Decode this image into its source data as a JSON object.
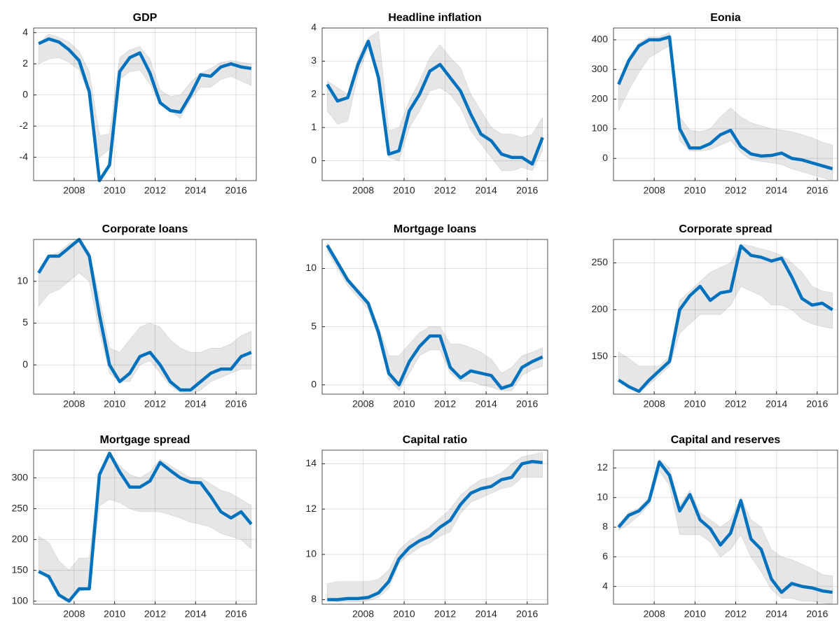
{
  "chart_data": [
    {
      "type": "line",
      "title": "GDP",
      "x": [
        2006.25,
        2006.75,
        2007.25,
        2007.75,
        2008.25,
        2008.75,
        2009.25,
        2009.75,
        2010.25,
        2010.75,
        2011.25,
        2011.75,
        2012.25,
        2012.75,
        2013.25,
        2013.75,
        2014.25,
        2014.75,
        2015.25,
        2015.75,
        2016.25,
        2016.75
      ],
      "series": [
        {
          "color": "#0072bd",
          "values": [
            3.3,
            3.6,
            3.4,
            2.9,
            2.2,
            0.2,
            -5.5,
            -4.5,
            1.5,
            2.4,
            2.7,
            1.4,
            -0.5,
            -1.0,
            -1.1,
            0.0,
            1.3,
            1.2,
            1.8,
            2.0,
            1.8,
            1.7
          ]
        }
      ],
      "band": {
        "color": "#e6e6e6",
        "lower": [
          2.0,
          2.3,
          2.4,
          2.1,
          1.6,
          0.0,
          -4.0,
          -3.5,
          1.0,
          1.5,
          1.6,
          0.7,
          -0.6,
          -1.0,
          -1.5,
          -0.3,
          0.5,
          0.5,
          1.0,
          1.2,
          0.9,
          0.6
        ],
        "upper": [
          3.3,
          3.9,
          3.7,
          3.4,
          2.8,
          1.5,
          -2.6,
          -2.5,
          2.4,
          2.9,
          3.1,
          2.3,
          0.3,
          -0.1,
          0.0,
          0.8,
          1.4,
          1.7,
          2.1,
          2.2,
          2.1,
          2.0
        ]
      },
      "xlim": [
        2006,
        2017
      ],
      "xticks": [
        2008,
        2010,
        2012,
        2014,
        2016
      ],
      "ylim": [
        -5.5,
        4.3
      ],
      "yticks": [
        -4,
        -2,
        0,
        2,
        4
      ],
      "grid": true
    },
    {
      "type": "line",
      "title": "Headline inflation",
      "x": [
        2006.25,
        2006.75,
        2007.25,
        2007.75,
        2008.25,
        2008.75,
        2009.25,
        2009.75,
        2010.25,
        2010.75,
        2011.25,
        2011.75,
        2012.25,
        2012.75,
        2013.25,
        2013.75,
        2014.25,
        2014.75,
        2015.25,
        2015.75,
        2016.25,
        2016.75
      ],
      "series": [
        {
          "color": "#0072bd",
          "values": [
            2.3,
            1.8,
            1.9,
            2.9,
            3.6,
            2.5,
            0.2,
            0.3,
            1.5,
            2.0,
            2.7,
            2.9,
            2.5,
            2.1,
            1.4,
            0.8,
            0.6,
            0.2,
            0.1,
            0.1,
            -0.1,
            0.7
          ]
        }
      ],
      "band": {
        "color": "#e6e6e6",
        "lower": [
          1.5,
          1.1,
          1.2,
          2.6,
          3.4,
          2.4,
          0.1,
          0.0,
          1.0,
          1.5,
          2.1,
          2.2,
          2.0,
          1.6,
          0.9,
          0.5,
          0.1,
          -0.3,
          -0.3,
          -0.2,
          -0.3,
          0.3
        ],
        "upper": [
          2.4,
          2.2,
          2.0,
          3.1,
          3.7,
          3.9,
          0.9,
          1.0,
          1.8,
          2.4,
          3.1,
          3.5,
          3.1,
          2.8,
          2.0,
          1.5,
          1.0,
          0.8,
          0.8,
          0.7,
          0.8,
          1.3
        ]
      },
      "xlim": [
        2006,
        2017
      ],
      "xticks": [
        2008,
        2010,
        2012,
        2014,
        2016
      ],
      "ylim": [
        -0.6,
        4.0
      ],
      "yticks": [
        0,
        1,
        2,
        3,
        4
      ],
      "grid": true
    },
    {
      "type": "line",
      "title": "Eonia",
      "x": [
        2006.25,
        2006.75,
        2007.25,
        2007.75,
        2008.25,
        2008.75,
        2009.25,
        2009.75,
        2010.25,
        2010.75,
        2011.25,
        2011.75,
        2012.25,
        2012.75,
        2013.25,
        2013.75,
        2014.25,
        2014.75,
        2015.25,
        2015.75,
        2016.25,
        2016.75
      ],
      "series": [
        {
          "color": "#0072bd",
          "values": [
            250,
            330,
            380,
            400,
            400,
            410,
            100,
            35,
            35,
            50,
            80,
            95,
            40,
            15,
            8,
            10,
            18,
            0,
            -5,
            -15,
            -25,
            -35
          ]
        }
      ],
      "band": {
        "color": "#e6e6e6",
        "lower": [
          160,
          230,
          290,
          340,
          360,
          380,
          60,
          25,
          25,
          30,
          45,
          60,
          20,
          -5,
          -10,
          -15,
          -20,
          -35,
          -45,
          -55,
          -65,
          -75
        ],
        "upper": [
          260,
          340,
          390,
          410,
          410,
          425,
          140,
          95,
          90,
          100,
          140,
          170,
          140,
          120,
          110,
          100,
          95,
          90,
          80,
          70,
          55,
          45
        ]
      },
      "xlim": [
        2006,
        2017
      ],
      "xticks": [
        2008,
        2010,
        2012,
        2014,
        2016
      ],
      "ylim": [
        -75,
        440
      ],
      "yticks": [
        0,
        100,
        200,
        300,
        400
      ],
      "grid": true
    },
    {
      "type": "line",
      "title": "Corporate loans",
      "x": [
        2006.25,
        2006.75,
        2007.25,
        2007.75,
        2008.25,
        2008.75,
        2009.25,
        2009.75,
        2010.25,
        2010.75,
        2011.25,
        2011.75,
        2012.25,
        2012.75,
        2013.25,
        2013.75,
        2014.25,
        2014.75,
        2015.25,
        2015.75,
        2016.25,
        2016.75
      ],
      "series": [
        {
          "color": "#0072bd",
          "values": [
            11,
            13,
            13,
            14,
            15,
            13,
            6,
            0,
            -2,
            -1,
            1,
            1.5,
            0,
            -2,
            -3,
            -3,
            -2,
            -1,
            -0.5,
            -0.5,
            1,
            1.5
          ]
        }
      ],
      "band": {
        "color": "#e6e6e6",
        "lower": [
          7,
          8.5,
          9,
          10,
          11,
          10,
          4,
          -1,
          -2,
          -2,
          0,
          0.5,
          -1,
          -2.5,
          -3.3,
          -3.5,
          -3,
          -2,
          -1.5,
          -1,
          -0.5,
          -0.5
        ],
        "upper": [
          11,
          13,
          13.5,
          14.5,
          15,
          13.5,
          8,
          2,
          1.5,
          3,
          4.5,
          5,
          4.5,
          3,
          2,
          1.5,
          1.5,
          2,
          2,
          2.5,
          3.5,
          4
        ]
      },
      "xlim": [
        2006,
        2017
      ],
      "xticks": [
        2008,
        2010,
        2012,
        2014,
        2016
      ],
      "ylim": [
        -3.5,
        15
      ],
      "yticks": [
        0,
        5,
        10
      ],
      "grid": true
    },
    {
      "type": "line",
      "title": "Mortgage loans",
      "x": [
        2006.25,
        2006.75,
        2007.25,
        2007.75,
        2008.25,
        2008.75,
        2009.25,
        2009.75,
        2010.25,
        2010.75,
        2011.25,
        2011.75,
        2012.25,
        2012.75,
        2013.25,
        2013.75,
        2014.25,
        2014.75,
        2015.25,
        2015.75,
        2016.25,
        2016.75
      ],
      "series": [
        {
          "color": "#0072bd",
          "values": [
            12,
            10.5,
            9,
            8,
            7,
            4.5,
            1,
            0,
            2,
            3.3,
            4.2,
            4.2,
            1.5,
            0.6,
            1.2,
            1,
            0.8,
            -0.3,
            0,
            1.5,
            2,
            2.4
          ]
        }
      ],
      "band": {
        "color": "#e6e6e6",
        "lower": [
          11.5,
          10,
          8.5,
          7.5,
          6.5,
          4,
          0.5,
          -0.5,
          1,
          2.5,
          3,
          3,
          1,
          0.3,
          0.3,
          0,
          -0.2,
          -0.5,
          -0.5,
          0.8,
          1.3,
          1.6
        ],
        "upper": [
          12.2,
          10.8,
          9.2,
          8.2,
          7.2,
          5,
          2.5,
          2.5,
          3.5,
          4.5,
          5,
          5,
          3.5,
          3.5,
          3.2,
          2.8,
          2.2,
          1,
          1.5,
          2.5,
          2.8,
          3.2
        ]
      },
      "xlim": [
        2006,
        2017
      ],
      "xticks": [
        2008,
        2010,
        2012,
        2014,
        2016
      ],
      "ylim": [
        -0.8,
        12.5
      ],
      "yticks": [
        0,
        5,
        10
      ],
      "grid": true
    },
    {
      "type": "line",
      "title": "Corporate spread",
      "x": [
        2006.25,
        2006.75,
        2007.25,
        2007.75,
        2008.25,
        2008.75,
        2009.25,
        2009.75,
        2010.25,
        2010.75,
        2011.25,
        2011.75,
        2012.25,
        2012.75,
        2013.25,
        2013.75,
        2014.25,
        2014.75,
        2015.25,
        2015.75,
        2016.25,
        2016.75
      ],
      "series": [
        {
          "color": "#0072bd",
          "values": [
            125,
            118,
            113,
            125,
            135,
            145,
            200,
            215,
            225,
            210,
            218,
            220,
            268,
            258,
            256,
            252,
            255,
            235,
            212,
            205,
            207,
            200
          ]
        }
      ],
      "band": {
        "color": "#e6e6e6",
        "lower": [
          125,
          118,
          113,
          120,
          130,
          140,
          175,
          185,
          195,
          195,
          195,
          205,
          225,
          220,
          215,
          205,
          205,
          200,
          190,
          185,
          182,
          180
        ],
        "upper": [
          155,
          148,
          140,
          140,
          140,
          150,
          210,
          220,
          230,
          240,
          245,
          250,
          270,
          268,
          265,
          262,
          258,
          250,
          240,
          225,
          220,
          218
        ]
      },
      "xlim": [
        2006,
        2017
      ],
      "xticks": [
        2008,
        2010,
        2012,
        2014,
        2016
      ],
      "ylim": [
        110,
        275
      ],
      "yticks": [
        150,
        200,
        250
      ],
      "grid": true
    },
    {
      "type": "line",
      "title": "Mortgage spread",
      "x": [
        2006.25,
        2006.75,
        2007.25,
        2007.75,
        2008.25,
        2008.75,
        2009.25,
        2009.75,
        2010.25,
        2010.75,
        2011.25,
        2011.75,
        2012.25,
        2012.75,
        2013.25,
        2013.75,
        2014.25,
        2014.75,
        2015.25,
        2015.75,
        2016.25,
        2016.75
      ],
      "series": [
        {
          "color": "#0072bd",
          "values": [
            148,
            140,
            110,
            100,
            120,
            120,
            305,
            340,
            310,
            285,
            285,
            295,
            325,
            312,
            300,
            293,
            292,
            270,
            245,
            235,
            245,
            225
          ]
        }
      ],
      "band": {
        "color": "#e6e6e6",
        "lower": [
          148,
          135,
          110,
          100,
          115,
          120,
          255,
          265,
          260,
          250,
          245,
          245,
          245,
          240,
          235,
          228,
          225,
          220,
          210,
          205,
          200,
          185
        ],
        "upper": [
          205,
          195,
          165,
          150,
          170,
          170,
          310,
          340,
          320,
          305,
          300,
          310,
          330,
          320,
          310,
          300,
          300,
          290,
          280,
          275,
          265,
          255
        ]
      },
      "xlim": [
        2006,
        2017
      ],
      "xticks": [
        2008,
        2010,
        2012,
        2014,
        2016
      ],
      "ylim": [
        95,
        345
      ],
      "yticks": [
        100,
        150,
        200,
        250,
        300
      ],
      "grid": true
    },
    {
      "type": "line",
      "title": "Capital ratio",
      "x": [
        2006.25,
        2006.75,
        2007.25,
        2007.75,
        2008.25,
        2008.75,
        2009.25,
        2009.75,
        2010.25,
        2010.75,
        2011.25,
        2011.75,
        2012.25,
        2012.75,
        2013.25,
        2013.75,
        2014.25,
        2014.75,
        2015.25,
        2015.75,
        2016.25,
        2016.75
      ],
      "series": [
        {
          "color": "#0072bd",
          "values": [
            8,
            8,
            8.05,
            8.05,
            8.1,
            8.3,
            8.8,
            9.8,
            10.3,
            10.6,
            10.8,
            11.2,
            11.5,
            12.2,
            12.7,
            12.9,
            13.0,
            13.3,
            13.4,
            14.0,
            14.1,
            14.05
          ]
        }
      ],
      "band": {
        "color": "#e6e6e6",
        "lower": [
          8.0,
          7.9,
          7.9,
          7.9,
          7.95,
          8.1,
          8.5,
          9.6,
          10.0,
          10.3,
          10.5,
          10.8,
          11.0,
          11.8,
          12.3,
          12.5,
          12.7,
          12.9,
          13.0,
          13.4,
          13.4,
          13.4
        ],
        "upper": [
          8.7,
          8.8,
          8.8,
          8.8,
          8.8,
          8.9,
          9.3,
          10.2,
          10.6,
          10.9,
          11.2,
          11.6,
          12.0,
          12.6,
          13.0,
          13.3,
          13.4,
          13.6,
          14.0,
          14.3,
          14.4,
          14.5
        ]
      },
      "xlim": [
        2006,
        2017
      ],
      "xticks": [
        2008,
        2010,
        2012,
        2014,
        2016
      ],
      "ylim": [
        7.8,
        14.6
      ],
      "yticks": [
        8,
        10,
        12,
        14
      ],
      "grid": true
    },
    {
      "type": "line",
      "title": "Capital and reserves",
      "x": [
        2006.25,
        2006.75,
        2007.25,
        2007.75,
        2008.25,
        2008.75,
        2009.25,
        2009.75,
        2010.25,
        2010.75,
        2011.25,
        2011.75,
        2012.25,
        2012.75,
        2013.25,
        2013.75,
        2014.25,
        2014.75,
        2015.25,
        2015.75,
        2016.25,
        2016.75
      ],
      "series": [
        {
          "color": "#0072bd",
          "values": [
            8,
            8.8,
            9.1,
            9.8,
            12.4,
            11.5,
            9.1,
            10.2,
            8.5,
            7.9,
            6.8,
            7.6,
            9.8,
            7.2,
            6.5,
            4.5,
            3.6,
            4.2,
            4.0,
            3.9,
            3.7,
            3.6
          ]
        }
      ],
      "band": {
        "color": "#e6e6e6",
        "lower": [
          7.8,
          8.2,
          8.8,
          9.5,
          11.8,
          10.8,
          7.5,
          7.5,
          7.5,
          7.0,
          6.0,
          6.5,
          7.5,
          6.0,
          5.0,
          3.8,
          3.2,
          3.2,
          3.0,
          3.0,
          2.9,
          2.8
        ],
        "upper": [
          8.2,
          9.0,
          9.3,
          10.0,
          12.6,
          12.0,
          9.5,
          10.5,
          9.0,
          8.5,
          8.0,
          8.5,
          10.0,
          8.5,
          8.0,
          6.5,
          6.0,
          5.8,
          5.5,
          5.2,
          4.8,
          4.7
        ]
      },
      "xlim": [
        2006,
        2017
      ],
      "xticks": [
        2008,
        2010,
        2012,
        2014,
        2016
      ],
      "ylim": [
        2.8,
        13.2
      ],
      "yticks": [
        4,
        6,
        8,
        10,
        12
      ],
      "grid": true
    }
  ]
}
